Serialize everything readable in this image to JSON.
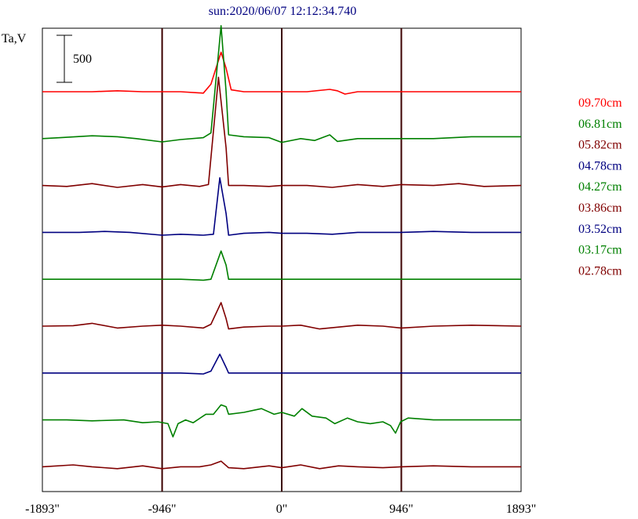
{
  "chart_data": {
    "type": "line",
    "title": "sun:2020/06/07 12:12:34.740",
    "ylabel": "Ta,V",
    "scale_bar_label": "500",
    "scale_bar_value": 500,
    "xlim": [
      -1893,
      1893
    ],
    "x_ticks": [
      {
        "value": -1893,
        "label": "-1893\""
      },
      {
        "value": -946,
        "label": "-946\""
      },
      {
        "value": 0,
        "label": "0\""
      },
      {
        "value": 946,
        "label": "946\""
      },
      {
        "value": 1893,
        "label": "1893\""
      }
    ],
    "vertical_lines": [
      -946,
      0,
      946
    ],
    "series": [
      {
        "name": "09.70cm",
        "color": "#ff0000",
        "points": [
          [
            -1893,
            0
          ],
          [
            -1500,
            0
          ],
          [
            -1300,
            10
          ],
          [
            -1100,
            0
          ],
          [
            -946,
            0
          ],
          [
            -800,
            0
          ],
          [
            -620,
            -15
          ],
          [
            -560,
            80
          ],
          [
            -480,
            420
          ],
          [
            -440,
            250
          ],
          [
            -400,
            20
          ],
          [
            -300,
            0
          ],
          [
            -100,
            0
          ],
          [
            0,
            0
          ],
          [
            200,
            0
          ],
          [
            380,
            25
          ],
          [
            440,
            10
          ],
          [
            500,
            -25
          ],
          [
            600,
            0
          ],
          [
            946,
            0
          ],
          [
            1200,
            0
          ],
          [
            1893,
            0
          ]
        ]
      },
      {
        "name": "06.81cm",
        "color": "#008000",
        "points": [
          [
            -1893,
            0
          ],
          [
            -1750,
            10
          ],
          [
            -1500,
            30
          ],
          [
            -1300,
            20
          ],
          [
            -1150,
            0
          ],
          [
            -946,
            -35
          ],
          [
            -800,
            -10
          ],
          [
            -620,
            10
          ],
          [
            -560,
            60
          ],
          [
            -480,
            1200
          ],
          [
            -440,
            500
          ],
          [
            -420,
            40
          ],
          [
            -300,
            20
          ],
          [
            -100,
            10
          ],
          [
            0,
            -40
          ],
          [
            150,
            0
          ],
          [
            260,
            -20
          ],
          [
            380,
            40
          ],
          [
            440,
            -30
          ],
          [
            600,
            0
          ],
          [
            946,
            0
          ],
          [
            1200,
            0
          ],
          [
            1500,
            20
          ],
          [
            1893,
            20
          ]
        ]
      },
      {
        "name": "05.82cm",
        "color": "#800000",
        "points": [
          [
            -1893,
            0
          ],
          [
            -1700,
            -10
          ],
          [
            -1500,
            20
          ],
          [
            -1300,
            -20
          ],
          [
            -1100,
            10
          ],
          [
            -946,
            -15
          ],
          [
            -800,
            10
          ],
          [
            -650,
            -10
          ],
          [
            -580,
            10
          ],
          [
            -500,
            1150
          ],
          [
            -440,
            400
          ],
          [
            -420,
            0
          ],
          [
            -300,
            0
          ],
          [
            -100,
            -10
          ],
          [
            0,
            0
          ],
          [
            200,
            0
          ],
          [
            400,
            -20
          ],
          [
            600,
            10
          ],
          [
            800,
            -10
          ],
          [
            946,
            10
          ],
          [
            1200,
            0
          ],
          [
            1400,
            20
          ],
          [
            1600,
            -10
          ],
          [
            1893,
            0
          ]
        ]
      },
      {
        "name": "04.78cm",
        "color": "#000080",
        "points": [
          [
            -1893,
            0
          ],
          [
            -1600,
            0
          ],
          [
            -1400,
            10
          ],
          [
            -1200,
            0
          ],
          [
            -946,
            -30
          ],
          [
            -800,
            -20
          ],
          [
            -620,
            -30
          ],
          [
            -540,
            -20
          ],
          [
            -490,
            580
          ],
          [
            -440,
            200
          ],
          [
            -420,
            -30
          ],
          [
            -300,
            -10
          ],
          [
            -100,
            0
          ],
          [
            0,
            -10
          ],
          [
            200,
            -10
          ],
          [
            400,
            -20
          ],
          [
            600,
            0
          ],
          [
            946,
            0
          ],
          [
            1200,
            10
          ],
          [
            1500,
            0
          ],
          [
            1893,
            0
          ]
        ]
      },
      {
        "name": "04.27cm",
        "color": "#008000",
        "points": [
          [
            -1893,
            0
          ],
          [
            -1500,
            0
          ],
          [
            -1200,
            0
          ],
          [
            -946,
            0
          ],
          [
            -800,
            0
          ],
          [
            -620,
            -10
          ],
          [
            -560,
            0
          ],
          [
            -480,
            300
          ],
          [
            -440,
            150
          ],
          [
            -420,
            0
          ],
          [
            -300,
            0
          ],
          [
            0,
            0
          ],
          [
            300,
            0
          ],
          [
            600,
            0
          ],
          [
            946,
            0
          ],
          [
            1200,
            0
          ],
          [
            1500,
            0
          ],
          [
            1893,
            0
          ]
        ]
      },
      {
        "name": "03.86cm",
        "color": "#800000",
        "points": [
          [
            -1893,
            0
          ],
          [
            -1650,
            5
          ],
          [
            -1500,
            30
          ],
          [
            -1300,
            -20
          ],
          [
            -1100,
            0
          ],
          [
            -946,
            10
          ],
          [
            -800,
            0
          ],
          [
            -620,
            -20
          ],
          [
            -560,
            20
          ],
          [
            -480,
            250
          ],
          [
            -440,
            80
          ],
          [
            -420,
            -30
          ],
          [
            -300,
            -10
          ],
          [
            -100,
            0
          ],
          [
            0,
            0
          ],
          [
            150,
            10
          ],
          [
            300,
            -30
          ],
          [
            450,
            -10
          ],
          [
            600,
            10
          ],
          [
            800,
            0
          ],
          [
            946,
            -20
          ],
          [
            1200,
            0
          ],
          [
            1500,
            10
          ],
          [
            1893,
            0
          ]
        ]
      },
      {
        "name": "03.52cm",
        "color": "#000080",
        "points": [
          [
            -1893,
            0
          ],
          [
            -1600,
            0
          ],
          [
            -1300,
            0
          ],
          [
            -1100,
            0
          ],
          [
            -946,
            0
          ],
          [
            -800,
            0
          ],
          [
            -620,
            -10
          ],
          [
            -560,
            20
          ],
          [
            -490,
            200
          ],
          [
            -440,
            60
          ],
          [
            -420,
            0
          ],
          [
            -300,
            0
          ],
          [
            0,
            0
          ],
          [
            300,
            0
          ],
          [
            600,
            0
          ],
          [
            946,
            0
          ],
          [
            1200,
            0
          ],
          [
            1500,
            0
          ],
          [
            1893,
            0
          ]
        ]
      },
      {
        "name": "03.17cm",
        "color": "#008000",
        "points": [
          [
            -1893,
            0
          ],
          [
            -1700,
            0
          ],
          [
            -1500,
            -10
          ],
          [
            -1250,
            0
          ],
          [
            -1100,
            -30
          ],
          [
            -980,
            -20
          ],
          [
            -900,
            -40
          ],
          [
            -860,
            -180
          ],
          [
            -820,
            -40
          ],
          [
            -760,
            0
          ],
          [
            -700,
            -30
          ],
          [
            -600,
            60
          ],
          [
            -540,
            60
          ],
          [
            -480,
            160
          ],
          [
            -440,
            140
          ],
          [
            -420,
            60
          ],
          [
            -300,
            80
          ],
          [
            -160,
            120
          ],
          [
            -60,
            60
          ],
          [
            0,
            80
          ],
          [
            100,
            40
          ],
          [
            160,
            120
          ],
          [
            240,
            40
          ],
          [
            350,
            20
          ],
          [
            420,
            -40
          ],
          [
            520,
            20
          ],
          [
            600,
            -20
          ],
          [
            700,
            -40
          ],
          [
            800,
            -20
          ],
          [
            860,
            -60
          ],
          [
            900,
            -140
          ],
          [
            940,
            -20
          ],
          [
            1000,
            20
          ],
          [
            1200,
            0
          ],
          [
            1500,
            0
          ],
          [
            1893,
            0
          ]
        ]
      },
      {
        "name": "02.78cm",
        "color": "#800000",
        "points": [
          [
            -1893,
            0
          ],
          [
            -1650,
            20
          ],
          [
            -1500,
            0
          ],
          [
            -1300,
            -20
          ],
          [
            -1100,
            10
          ],
          [
            -946,
            -20
          ],
          [
            -800,
            0
          ],
          [
            -650,
            0
          ],
          [
            -560,
            20
          ],
          [
            -480,
            60
          ],
          [
            -420,
            -10
          ],
          [
            -300,
            -20
          ],
          [
            -100,
            10
          ],
          [
            0,
            -10
          ],
          [
            150,
            20
          ],
          [
            300,
            -20
          ],
          [
            450,
            10
          ],
          [
            600,
            0
          ],
          [
            800,
            -10
          ],
          [
            946,
            0
          ],
          [
            1200,
            10
          ],
          [
            1500,
            0
          ],
          [
            1893,
            0
          ]
        ]
      }
    ]
  }
}
